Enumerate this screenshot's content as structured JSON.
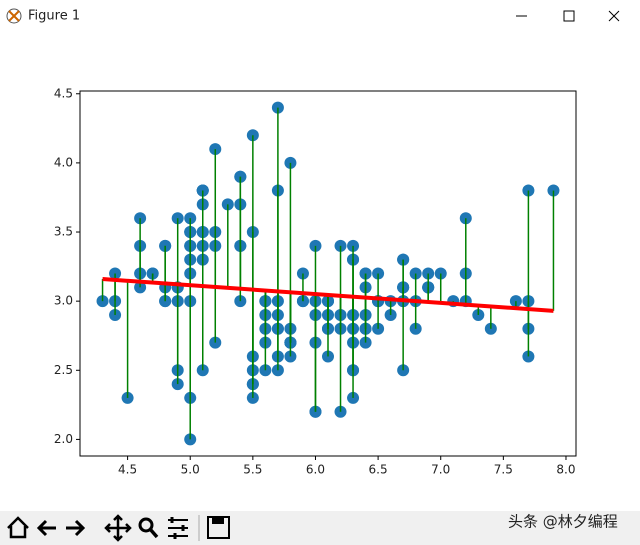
{
  "window": {
    "title": "Figure 1"
  },
  "watermark": "头条 @林夕编程",
  "chart_data": {
    "type": "scatter",
    "x": [
      5.1,
      4.9,
      4.7,
      4.6,
      5.0,
      5.4,
      4.6,
      5.0,
      4.4,
      4.9,
      5.4,
      4.8,
      4.8,
      4.3,
      5.8,
      5.7,
      5.4,
      5.1,
      5.7,
      5.1,
      5.4,
      5.1,
      4.6,
      5.1,
      4.8,
      5.0,
      5.0,
      5.2,
      5.2,
      4.7,
      4.8,
      5.4,
      5.2,
      5.5,
      4.9,
      5.0,
      5.5,
      4.9,
      4.4,
      5.1,
      5.0,
      4.5,
      4.4,
      5.0,
      5.1,
      4.8,
      5.1,
      4.6,
      5.3,
      5.0,
      7.0,
      6.4,
      6.9,
      5.5,
      6.5,
      5.7,
      6.3,
      4.9,
      6.6,
      5.2,
      5.0,
      5.9,
      6.0,
      6.1,
      5.6,
      6.7,
      5.6,
      5.8,
      6.2,
      5.6,
      5.9,
      6.1,
      6.3,
      6.1,
      6.4,
      6.6,
      6.8,
      6.7,
      6.0,
      5.7,
      5.5,
      5.5,
      5.8,
      6.0,
      5.4,
      6.0,
      6.7,
      6.3,
      5.6,
      5.5,
      5.5,
      6.1,
      5.8,
      5.0,
      5.6,
      5.7,
      5.7,
      6.2,
      5.1,
      5.7,
      6.3,
      5.8,
      7.1,
      6.3,
      6.5,
      7.6,
      4.9,
      7.3,
      6.7,
      7.2,
      6.5,
      6.4,
      6.8,
      5.7,
      5.8,
      6.4,
      6.5,
      7.7,
      7.7,
      6.0,
      6.9,
      5.6,
      7.7,
      6.3,
      6.7,
      7.2,
      6.2,
      6.1,
      6.4,
      7.2,
      7.4,
      7.9,
      6.4,
      6.3,
      6.1,
      7.7,
      6.3,
      6.4,
      6.0,
      6.9,
      6.7,
      6.9,
      5.8,
      6.8,
      6.7,
      6.7,
      6.3,
      6.5,
      6.2,
      5.9
    ],
    "values": [
      3.5,
      3.0,
      3.2,
      3.1,
      3.6,
      3.9,
      3.4,
      3.4,
      2.9,
      3.1,
      3.7,
      3.4,
      3.0,
      3.0,
      4.0,
      4.4,
      3.9,
      3.5,
      3.8,
      3.8,
      3.4,
      3.7,
      3.6,
      3.3,
      3.4,
      3.0,
      3.4,
      3.5,
      3.4,
      3.2,
      3.1,
      3.4,
      4.1,
      4.2,
      3.1,
      3.2,
      3.5,
      3.6,
      3.0,
      3.4,
      3.5,
      2.3,
      3.2,
      3.5,
      3.8,
      3.0,
      3.8,
      3.2,
      3.7,
      3.3,
      3.2,
      3.2,
      3.1,
      2.3,
      2.8,
      2.8,
      3.3,
      2.4,
      2.9,
      2.7,
      2.0,
      3.0,
      2.2,
      2.9,
      2.9,
      3.1,
      3.0,
      2.7,
      2.2,
      2.5,
      3.2,
      2.8,
      2.5,
      2.8,
      2.9,
      3.0,
      2.8,
      3.0,
      2.9,
      2.6,
      2.4,
      2.4,
      2.7,
      2.7,
      3.0,
      3.4,
      3.1,
      2.3,
      3.0,
      2.5,
      2.6,
      3.0,
      2.6,
      2.3,
      2.7,
      3.0,
      2.9,
      2.9,
      2.5,
      2.8,
      3.3,
      2.7,
      3.0,
      2.9,
      3.0,
      3.0,
      2.5,
      2.9,
      2.5,
      3.6,
      3.2,
      2.7,
      3.0,
      2.5,
      2.8,
      3.2,
      3.0,
      3.8,
      2.6,
      2.2,
      3.2,
      2.8,
      2.8,
      2.7,
      3.3,
      3.2,
      2.8,
      3.0,
      2.8,
      3.0,
      2.8,
      3.8,
      2.8,
      2.8,
      2.6,
      3.0,
      3.4,
      3.1,
      3.0,
      3.1,
      3.1,
      3.1,
      2.7,
      3.2,
      3.3,
      3.0,
      2.5,
      3.0,
      3.4,
      3.0
    ],
    "color": "#1f77b4",
    "fit_line": {
      "x": [
        4.3,
        7.9
      ],
      "values": [
        3.16,
        2.93
      ],
      "color": "#ff0000"
    },
    "residual_color": "#008000",
    "xlim": [
      4.12,
      8.08
    ],
    "ylim": [
      1.88,
      4.52
    ],
    "xticks": [
      4.5,
      {
        "value": 5,
        "label": "5.0"
      },
      5.5,
      {
        "value": 6,
        "label": "6.0"
      },
      6.5,
      {
        "value": 7,
        "label": "7.0"
      },
      7.5,
      {
        "value": 8,
        "label": "8.0"
      }
    ],
    "yticks": [
      {
        "value": 2,
        "label": "2.0"
      },
      2.5,
      {
        "value": 3,
        "label": "3.0"
      },
      3.5,
      {
        "value": 4,
        "label": "4.0"
      },
      4.5
    ]
  }
}
